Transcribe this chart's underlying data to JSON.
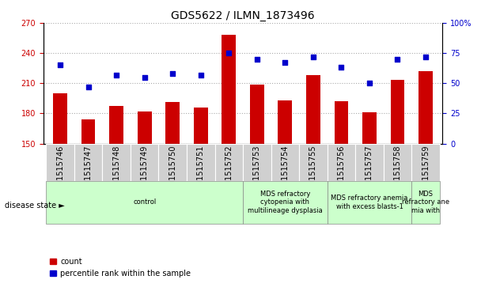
{
  "title": "GDS5622 / ILMN_1873496",
  "samples": [
    "GSM1515746",
    "GSM1515747",
    "GSM1515748",
    "GSM1515749",
    "GSM1515750",
    "GSM1515751",
    "GSM1515752",
    "GSM1515753",
    "GSM1515754",
    "GSM1515755",
    "GSM1515756",
    "GSM1515757",
    "GSM1515758",
    "GSM1515759"
  ],
  "counts": [
    200,
    174,
    187,
    182,
    191,
    186,
    258,
    209,
    193,
    218,
    192,
    181,
    213,
    222
  ],
  "percentile_ranks": [
    65,
    47,
    57,
    55,
    58,
    57,
    75,
    70,
    67,
    72,
    63,
    50,
    70,
    72
  ],
  "ylim_left": [
    150,
    270
  ],
  "ylim_right": [
    0,
    100
  ],
  "yticks_left": [
    150,
    180,
    210,
    240,
    270
  ],
  "yticks_right": [
    0,
    25,
    50,
    75,
    100
  ],
  "bar_color": "#cc0000",
  "dot_color": "#0000cc",
  "grid_color": "#aaaaaa",
  "tick_bg_color": "#d0d0d0",
  "ds_bg_color": "#ccffcc",
  "ds_border_color": "#888888",
  "disease_states": [
    {
      "label": "control",
      "start": 0,
      "end": 6
    },
    {
      "label": "MDS refractory\ncytopenia with\nmultilineage dysplasia",
      "start": 7,
      "end": 9
    },
    {
      "label": "MDS refractory anemia\nwith excess blasts-1",
      "start": 10,
      "end": 12
    },
    {
      "label": "MDS\nrefractory ane\nmia with",
      "start": 13,
      "end": 13
    }
  ],
  "disease_state_label": "disease state",
  "legend_count_label": "count",
  "legend_percentile_label": "percentile rank within the sample",
  "bar_width": 0.5,
  "title_fontsize": 10,
  "tick_fontsize": 7,
  "label_fontsize": 7,
  "ds_fontsize": 6
}
